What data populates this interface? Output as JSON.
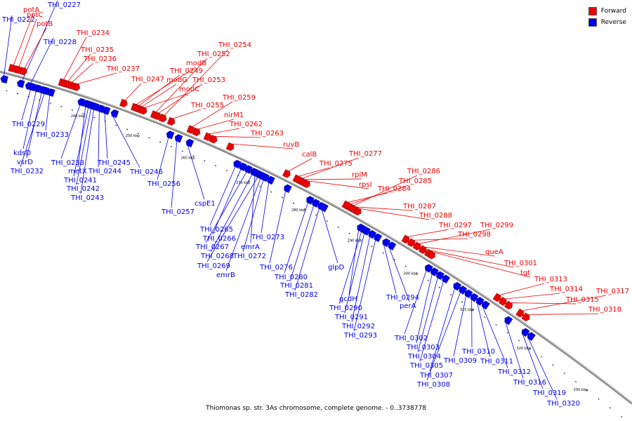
{
  "legend": {
    "forward": {
      "label": "Forward",
      "color": "#ee0000"
    },
    "reverse": {
      "label": "Reverse",
      "color": "#0000ee"
    }
  },
  "caption": "Thiomonas sp. str. 3As chromosome, complete genome. - 0..3738778",
  "axis": {
    "start_bp": 225000,
    "end_bp": 337000,
    "ticks": [
      "240 kbp",
      "250 kbp",
      "260 kbp",
      "270 kbp",
      "280 kbp",
      "290 kbp",
      "300 kbp",
      "310 kbp",
      "320 kbp",
      "330 kbp"
    ]
  },
  "genes": [
    {
      "name": "THI_0222",
      "strand": "reverse",
      "pos": 226000,
      "label_at": "3,31"
    },
    {
      "name": "THI_0227",
      "strand": "reverse",
      "pos": 229000,
      "label_at": "68,10"
    },
    {
      "name": "THI_0228",
      "strand": "reverse",
      "pos": 230500,
      "label_at": "62,63"
    },
    {
      "name": "potA",
      "strand": "forward",
      "pos": 227000,
      "label_at": "33,17"
    },
    {
      "name": "potC",
      "strand": "forward",
      "pos": 228000,
      "label_at": "38,24"
    },
    {
      "name": "potB",
      "strand": "forward",
      "pos": 229000,
      "label_at": "52,37"
    },
    {
      "name": "THI_0229",
      "strand": "reverse",
      "pos": 231000,
      "label_at": "17,180"
    },
    {
      "name": "THI_0233",
      "strand": "reverse",
      "pos": 234500,
      "label_at": "51,195"
    },
    {
      "name": "kdsD",
      "strand": "reverse",
      "pos": 232000,
      "label_at": "19,221"
    },
    {
      "name": "vsrD",
      "strand": "reverse",
      "pos": 233000,
      "label_at": "24,234"
    },
    {
      "name": "THI_0232",
      "strand": "reverse",
      "pos": 233500,
      "label_at": "15,247"
    },
    {
      "name": "THI_0234",
      "strand": "forward",
      "pos": 236000,
      "label_at": "109,50"
    },
    {
      "name": "THI_0235",
      "strand": "forward",
      "pos": 236800,
      "label_at": "115,74"
    },
    {
      "name": "THI_0236",
      "strand": "forward",
      "pos": 237500,
      "label_at": "119,87"
    },
    {
      "name": "THI_0237",
      "strand": "forward",
      "pos": 238500,
      "label_at": "152,101"
    },
    {
      "name": "THI_0238",
      "strand": "reverse",
      "pos": 240000,
      "label_at": "73,235"
    },
    {
      "name": "metX",
      "strand": "reverse",
      "pos": 241000,
      "label_at": "97,247"
    },
    {
      "name": "THI_0241",
      "strand": "reverse",
      "pos": 241500,
      "label_at": "91,260"
    },
    {
      "name": "THI_0244",
      "strand": "reverse",
      "pos": 243500,
      "label_at": "126,247"
    },
    {
      "name": "THI_0242",
      "strand": "reverse",
      "pos": 242000,
      "label_at": "95,272"
    },
    {
      "name": "THI_0245",
      "strand": "reverse",
      "pos": 244500,
      "label_at": "139,235"
    },
    {
      "name": "THI_0243",
      "strand": "reverse",
      "pos": 242500,
      "label_at": "101,285"
    },
    {
      "name": "THI_0246",
      "strand": "reverse",
      "pos": 246000,
      "label_at": "185,248"
    },
    {
      "name": "THI_0247",
      "strand": "forward",
      "pos": 247000,
      "label_at": "187,116"
    },
    {
      "name": "THI_0254",
      "strand": "forward",
      "pos": 254000,
      "label_at": "311,67"
    },
    {
      "name": "THI_0252",
      "strand": "forward",
      "pos": 252500,
      "label_at": "281,80"
    },
    {
      "name": "modB",
      "strand": "forward",
      "pos": 249000,
      "label_at": "265,93"
    },
    {
      "name": "THI_0249",
      "strand": "forward",
      "pos": 249500,
      "label_at": "242,104"
    },
    {
      "name": "modG",
      "strand": "forward",
      "pos": 250000,
      "label_at": "237,117"
    },
    {
      "name": "THI_0253",
      "strand": "forward",
      "pos": 253000,
      "label_at": "274,117"
    },
    {
      "name": "modC",
      "strand": "forward",
      "pos": 250500,
      "label_at": "255,130"
    },
    {
      "name": "THI_0256",
      "strand": "reverse",
      "pos": 256000,
      "label_at": "210,265"
    },
    {
      "name": "THI_0255",
      "strand": "forward",
      "pos": 255500,
      "label_at": "272,153"
    },
    {
      "name": "THI_0259",
      "strand": "forward",
      "pos": 259000,
      "label_at": "317,142"
    },
    {
      "name": "nirM1",
      "strand": "forward",
      "pos": 260000,
      "label_at": "319,167"
    },
    {
      "name": "THI_0262",
      "strand": "forward",
      "pos": 262000,
      "label_at": "327,180"
    },
    {
      "name": "THI_0263",
      "strand": "forward",
      "pos": 263000,
      "label_at": "357,193"
    },
    {
      "name": "cspE1",
      "strand": "reverse",
      "pos": 259500,
      "label_at": "277,293"
    },
    {
      "name": "THI_0257",
      "strand": "reverse",
      "pos": 257500,
      "label_at": "230,305"
    },
    {
      "name": "ruvB",
      "strand": "forward",
      "pos": 266000,
      "label_at": "403,209"
    },
    {
      "name": "THI_0265",
      "strand": "reverse",
      "pos": 268000,
      "label_at": "285,330"
    },
    {
      "name": "THI_0266",
      "strand": "reverse",
      "pos": 269000,
      "label_at": "289,343"
    },
    {
      "name": "THI_0273",
      "strand": "reverse",
      "pos": 274000,
      "label_at": "358,341"
    },
    {
      "name": "THI_0267",
      "strand": "reverse",
      "pos": 270000,
      "label_at": "279,355"
    },
    {
      "name": "emrA",
      "strand": "reverse",
      "pos": 271500,
      "label_at": "343,355"
    },
    {
      "name": "THI_0268",
      "strand": "reverse",
      "pos": 271000,
      "label_at": "286,368"
    },
    {
      "name": "THI_0272",
      "strand": "reverse",
      "pos": 273000,
      "label_at": "332,368"
    },
    {
      "name": "THI_0269",
      "strand": "reverse",
      "pos": 272000,
      "label_at": "281,382"
    },
    {
      "name": "emrB",
      "strand": "reverse",
      "pos": 272500,
      "label_at": "308,395"
    },
    {
      "name": "THI_0276",
      "strand": "reverse",
      "pos": 277000,
      "label_at": "370,384"
    },
    {
      "name": "calB",
      "strand": "forward",
      "pos": 276000,
      "label_at": "430,223"
    },
    {
      "name": "THI_0277",
      "strand": "forward",
      "pos": 278500,
      "label_at": "497,222"
    },
    {
      "name": "THI_0275",
      "strand": "forward",
      "pos": 277800,
      "label_at": "455,236"
    },
    {
      "name": "rplM",
      "strand": "forward",
      "pos": 279000,
      "label_at": "501,252"
    },
    {
      "name": "rpsI",
      "strand": "forward",
      "pos": 279500,
      "label_at": "511,266"
    },
    {
      "name": "THI_0280",
      "strand": "reverse",
      "pos": 281000,
      "label_at": "391,398"
    },
    {
      "name": "THI_0281",
      "strand": "reverse",
      "pos": 282000,
      "label_at": "399,410"
    },
    {
      "name": "glpD",
      "strand": "reverse",
      "pos": 283500,
      "label_at": "467,384"
    },
    {
      "name": "THI_0282",
      "strand": "reverse",
      "pos": 283000,
      "label_at": "406,423"
    },
    {
      "name": "THI_0286",
      "strand": "forward",
      "pos": 287500,
      "label_at": "580,247"
    },
    {
      "name": "THI_0285",
      "strand": "forward",
      "pos": 287000,
      "label_at": "568,261"
    },
    {
      "name": "THI_0284",
      "strand": "forward",
      "pos": 286500,
      "label_at": "538,272"
    },
    {
      "name": "THI_0287",
      "strand": "forward",
      "pos": 288000,
      "label_at": "574,297"
    },
    {
      "name": "THI_0288",
      "strand": "forward",
      "pos": 288500,
      "label_at": "597,310"
    },
    {
      "name": "gcdH",
      "strand": "reverse",
      "pos": 290000,
      "label_at": "483,429"
    },
    {
      "name": "THI_0294",
      "strand": "reverse",
      "pos": 294500,
      "label_at": "550,427"
    },
    {
      "name": "THI_0290",
      "strand": "reverse",
      "pos": 290500,
      "label_at": "469,442"
    },
    {
      "name": "perA",
      "strand": "reverse",
      "pos": 295500,
      "label_at": "569,439"
    },
    {
      "name": "THI_0291",
      "strand": "reverse",
      "pos": 291000,
      "label_at": "477,455"
    },
    {
      "name": "THI_0292",
      "strand": "reverse",
      "pos": 292000,
      "label_at": "487,468"
    },
    {
      "name": "THI_0293",
      "strand": "reverse",
      "pos": 293000,
      "label_at": "490,481"
    },
    {
      "name": "THI_0297",
      "strand": "forward",
      "pos": 297000,
      "label_at": "625,324"
    },
    {
      "name": "THI_0299",
      "strand": "forward",
      "pos": 299000,
      "label_at": "684,324"
    },
    {
      "name": "THI_0298",
      "strand": "forward",
      "pos": 298000,
      "label_at": "652,337"
    },
    {
      "name": "queA",
      "strand": "forward",
      "pos": 300000,
      "label_at": "691,362"
    },
    {
      "name": "THI_0301",
      "strand": "forward",
      "pos": 301000,
      "label_at": "718,378"
    },
    {
      "name": "tgt",
      "strand": "forward",
      "pos": 301500,
      "label_at": "741,392"
    },
    {
      "name": "THI_0302",
      "strand": "reverse",
      "pos": 302000,
      "label_at": "562,485"
    },
    {
      "name": "THI_0303",
      "strand": "reverse",
      "pos": 303000,
      "label_at": "579,498"
    },
    {
      "name": "THI_0304",
      "strand": "reverse",
      "pos": 304000,
      "label_at": "581,511"
    },
    {
      "name": "THI_0310",
      "strand": "reverse",
      "pos": 310000,
      "label_at": "658,504"
    },
    {
      "name": "THI_0309",
      "strand": "reverse",
      "pos": 309000,
      "label_at": "632,517"
    },
    {
      "name": "THI_0311",
      "strand": "reverse",
      "pos": 311000,
      "label_at": "684,518"
    },
    {
      "name": "THI_0305",
      "strand": "reverse",
      "pos": 305000,
      "label_at": "584,524"
    },
    {
      "name": "THI_0307",
      "strand": "reverse",
      "pos": 307000,
      "label_at": "598,538"
    },
    {
      "name": "THI_0312",
      "strand": "reverse",
      "pos": 312000,
      "label_at": "709,533"
    },
    {
      "name": "THI_0308",
      "strand": "reverse",
      "pos": 308000,
      "label_at": "594,551"
    },
    {
      "name": "THI_0316",
      "strand": "reverse",
      "pos": 316000,
      "label_at": "731,548"
    },
    {
      "name": "THI_0319",
      "strand": "reverse",
      "pos": 319000,
      "label_at": "759,563"
    },
    {
      "name": "THI_0320",
      "strand": "reverse",
      "pos": 320000,
      "label_at": "779,578"
    },
    {
      "name": "THI_0313",
      "strand": "forward",
      "pos": 313000,
      "label_at": "761,401"
    },
    {
      "name": "THI_0314",
      "strand": "forward",
      "pos": 314000,
      "label_at": "783,415"
    },
    {
      "name": "THI_0317",
      "strand": "forward",
      "pos": 317000,
      "label_at": "849,418"
    },
    {
      "name": "THI_0315",
      "strand": "forward",
      "pos": 315000,
      "label_at": "806,430"
    },
    {
      "name": "THI_0318",
      "strand": "forward",
      "pos": 318000,
      "label_at": "838,444"
    }
  ]
}
